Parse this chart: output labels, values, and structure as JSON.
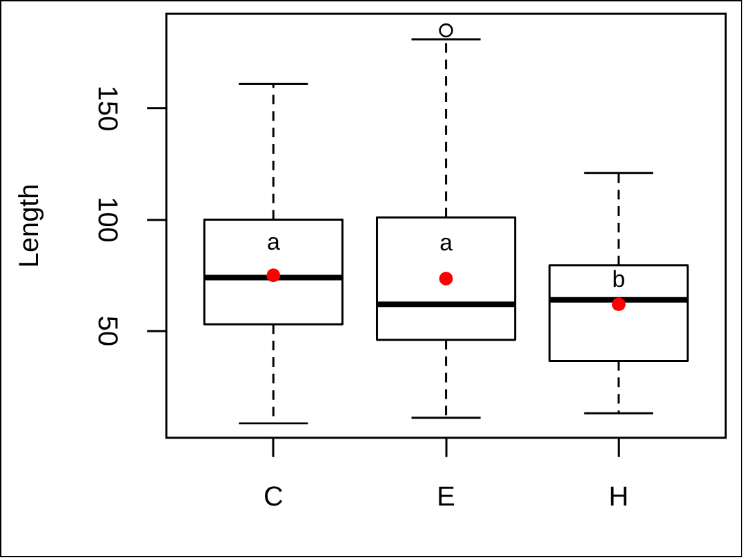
{
  "chart_data": {
    "type": "box",
    "ylabel": "Length",
    "categories": [
      "C",
      "E",
      "H"
    ],
    "series": [
      {
        "type": "box",
        "color": "#000000",
        "line_style": "dashed",
        "boxes": [
          {
            "low": 8.5,
            "q1": 53,
            "median": 74,
            "q3": 100,
            "high": 161
          },
          {
            "low": 11,
            "q1": 46,
            "median": 62,
            "q3": 101,
            "high": 181,
            "outliers": [
              185
            ]
          },
          {
            "low": 13,
            "q1": 36.5,
            "median": 64,
            "q3": 79.5,
            "high": 121
          }
        ]
      },
      {
        "type": "scatter",
        "x": [
          "C",
          "E",
          "H"
        ],
        "values": [
          75,
          73.5,
          62
        ],
        "color": "#ff0000",
        "marker": "circle"
      }
    ],
    "ylim": [
      2,
      192.5
    ],
    "yticks": [
      50,
      100,
      150
    ],
    "annotations": [
      "a",
      "a",
      "b"
    ]
  }
}
